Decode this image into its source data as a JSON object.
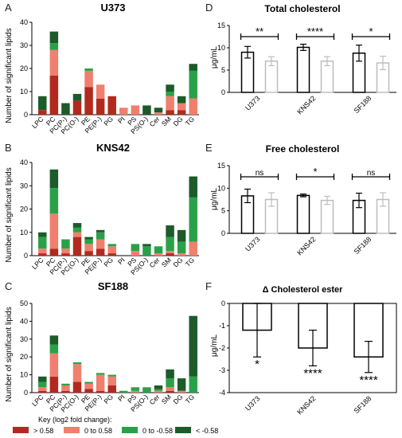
{
  "colors": {
    "dark_red": "#b22a1e",
    "salmon": "#f07f6e",
    "green": "#2aa149",
    "dark_green": "#1d5b2a",
    "black": "#000000",
    "gray": "#bdbdbd"
  },
  "key": {
    "title": "Key (log2 fold change):",
    "items": [
      {
        "label": "> 0.58",
        "color": "#b22a1e"
      },
      {
        "label": "0 to 0.58",
        "color": "#f07f6e"
      },
      {
        "label": "0 to -0.58",
        "color": "#2aa149"
      },
      {
        "label": "< -0.58",
        "color": "#1d5b2a"
      }
    ]
  },
  "chart_data": [
    {
      "panel": "A",
      "type": "bar",
      "stacked": true,
      "title": "U373",
      "ylabel": "Number of significant lipids",
      "ylim": [
        0,
        40
      ],
      "yticks": [
        0,
        10,
        20,
        30,
        40
      ],
      "categories": [
        "LPC",
        "PC",
        "PC(P-)",
        "PC(O-)",
        "PE",
        "PE(P-)",
        "PG",
        "PI",
        "PS",
        "PS(O-)",
        "Cer",
        "SM",
        "DG",
        "TG"
      ],
      "series": [
        {
          "color": "#b22a1e",
          "values": [
            2,
            17,
            0,
            6,
            12,
            7,
            8,
            0,
            0,
            0,
            0,
            2,
            2,
            0
          ]
        },
        {
          "color": "#f07f6e",
          "values": [
            0,
            11,
            0,
            0,
            7,
            6,
            0,
            3,
            4,
            0,
            1,
            6,
            3,
            7
          ]
        },
        {
          "color": "#2aa149",
          "values": [
            0,
            3,
            0,
            0,
            1,
            0,
            0,
            0,
            0,
            0,
            0,
            2,
            0,
            12
          ]
        },
        {
          "color": "#1d5b2a",
          "values": [
            6,
            5,
            5,
            3,
            0,
            0,
            0,
            0,
            0,
            4,
            2,
            3,
            3,
            3
          ]
        }
      ]
    },
    {
      "panel": "B",
      "type": "bar",
      "stacked": true,
      "title": "KNS42",
      "ylabel": "Number of significant lipids",
      "ylim": [
        0,
        40
      ],
      "yticks": [
        0,
        10,
        20,
        30,
        40
      ],
      "categories": [
        "LPC",
        "PC",
        "PC(P-)",
        "PC(O-)",
        "PE",
        "PE(P-)",
        "PG",
        "PI",
        "PS",
        "PS(O-)",
        "Cer",
        "SM",
        "DG",
        "TG"
      ],
      "series": [
        {
          "color": "#b22a1e",
          "values": [
            1,
            3,
            1,
            8,
            2,
            3,
            1,
            0,
            0,
            0,
            0,
            1,
            0,
            0
          ]
        },
        {
          "color": "#f07f6e",
          "values": [
            2,
            15,
            2,
            2,
            3,
            4,
            3,
            0,
            2,
            0,
            1,
            1,
            1,
            6
          ]
        },
        {
          "color": "#2aa149",
          "values": [
            5,
            11,
            4,
            2,
            2,
            3,
            1,
            0,
            3,
            4,
            3,
            6,
            5,
            19
          ]
        },
        {
          "color": "#1d5b2a",
          "values": [
            2,
            8,
            0,
            2,
            1,
            1,
            0,
            0,
            0,
            1,
            0,
            5,
            5,
            9
          ]
        }
      ]
    },
    {
      "panel": "C",
      "type": "bar",
      "stacked": true,
      "title": "SF188",
      "ylabel": "Number of significant lipids",
      "ylim": [
        0,
        50
      ],
      "yticks": [
        0,
        10,
        20,
        30,
        40,
        50
      ],
      "categories": [
        "LPC",
        "PC",
        "PC(P-)",
        "PC(O-)",
        "PE",
        "PE(P-)",
        "PG",
        "PI",
        "PS",
        "PS(O-)",
        "Cer",
        "SM",
        "DG",
        "TG"
      ],
      "series": [
        {
          "color": "#b22a1e",
          "values": [
            1,
            9,
            1,
            6,
            2,
            1,
            4,
            0,
            0,
            0,
            0,
            1,
            0,
            0
          ]
        },
        {
          "color": "#f07f6e",
          "values": [
            2,
            13,
            3,
            10,
            3,
            9,
            5,
            0,
            1,
            0,
            1,
            2,
            1,
            0
          ]
        },
        {
          "color": "#2aa149",
          "values": [
            3,
            5,
            1,
            1,
            1,
            1,
            1,
            1,
            2,
            3,
            1,
            5,
            0,
            9
          ]
        },
        {
          "color": "#1d5b2a",
          "values": [
            3,
            5,
            0,
            0,
            0,
            0,
            0,
            0,
            0,
            0,
            2,
            5,
            7,
            34
          ]
        }
      ]
    },
    {
      "panel": "D",
      "type": "bar",
      "title": "Total cholesterol",
      "ylabel": "μg/mL",
      "ylim": [
        0,
        15
      ],
      "yticks": [
        0,
        5,
        10,
        15
      ],
      "categories": [
        "U373",
        "KNS42",
        "SF188"
      ],
      "series": [
        {
          "color": "#000000",
          "values": [
            9,
            10.1,
            8.8
          ],
          "errors": [
            1.3,
            0.7,
            1.8
          ]
        },
        {
          "color": "#bdbdbd",
          "values": [
            7,
            7,
            6.6
          ],
          "errors": [
            1,
            1,
            1.5
          ]
        }
      ],
      "significance": [
        "**",
        "****",
        "*"
      ]
    },
    {
      "panel": "E",
      "type": "bar",
      "title": "Free cholesterol",
      "ylabel": "μg/mL",
      "ylim": [
        0,
        15
      ],
      "yticks": [
        0,
        5,
        10,
        15
      ],
      "categories": [
        "U373",
        "KNS42",
        "SF188"
      ],
      "series": [
        {
          "color": "#000000",
          "values": [
            8.3,
            8.4,
            7.3
          ],
          "errors": [
            1.5,
            0.3,
            1.6
          ]
        },
        {
          "color": "#bdbdbd",
          "values": [
            7.5,
            7.3,
            7.5
          ],
          "errors": [
            1.5,
            0.9,
            1.5
          ]
        }
      ],
      "significance": [
        "ns",
        "*",
        "ns"
      ]
    },
    {
      "panel": "F",
      "type": "bar",
      "title": "Δ Cholesterol ester",
      "ylabel": "μg/mL",
      "ylim": [
        -4,
        0
      ],
      "yticks": [
        0,
        -1,
        -2,
        -3,
        -4
      ],
      "categories": [
        "U373",
        "KNS42",
        "SF188"
      ],
      "values": [
        -1.2,
        -2,
        -2.4
      ],
      "errors": [
        1.2,
        0.8,
        0.7
      ],
      "significance": [
        "*",
        "****",
        "****"
      ]
    }
  ]
}
